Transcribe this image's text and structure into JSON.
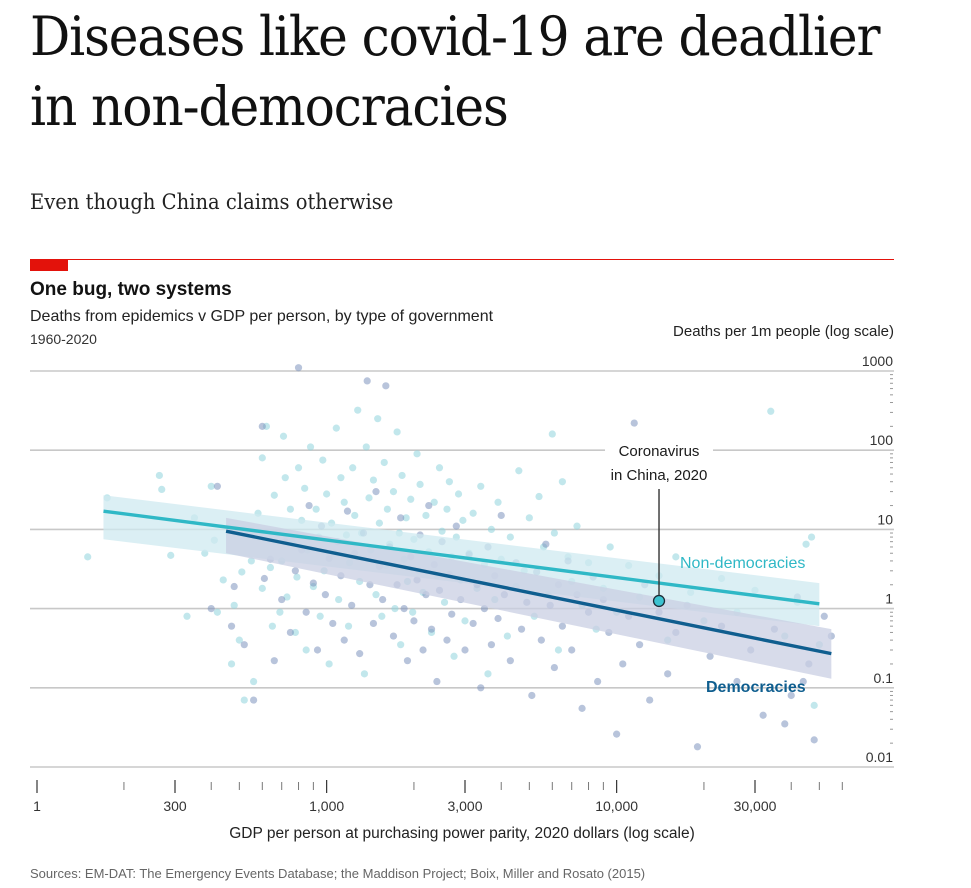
{
  "article": {
    "headline": "Diseases like covid-19 are deadlier in non-democracies",
    "standfirst": "Even though China claims otherwise"
  },
  "colors": {
    "brand_red": "#e3120b",
    "non_democracies": "#2fb8c6",
    "democracies": "#0f5e8f",
    "non_dem_points": "#8fd3dc",
    "dem_points": "#7e93bd",
    "non_dem_band": "#cfeaf0",
    "dem_band": "#c9cfe3",
    "grid": "#c8c8c8",
    "china_marker": "#3cc3d0"
  },
  "chart_data": {
    "type": "scatter",
    "title": "One bug, two systems",
    "subtitle": "Deaths from epidemics v GDP per person, by type of government",
    "period": "1960-2020",
    "xlabel": "GDP per person at purchasing power parity, 2020 dollars (log scale)",
    "ylabel": "Deaths per 1m people (log scale)",
    "x_scale": "log",
    "y_scale": "log",
    "xlim": [
      150,
      60000
    ],
    "ylim": [
      0.01,
      1000
    ],
    "x_axis_break_label": "1",
    "x_ticks": [
      {
        "value": 300,
        "label": "300"
      },
      {
        "value": 1000,
        "label": "1,000"
      },
      {
        "value": 3000,
        "label": "3,000"
      },
      {
        "value": 10000,
        "label": "10,000"
      },
      {
        "value": 30000,
        "label": "30,000"
      }
    ],
    "x_minor_ticks": [
      200,
      400,
      500,
      600,
      700,
      800,
      900,
      2000,
      4000,
      5000,
      6000,
      7000,
      8000,
      9000,
      20000,
      40000,
      50000,
      60000
    ],
    "y_ticks": [
      {
        "value": 1000,
        "label": "1000"
      },
      {
        "value": 100,
        "label": "100"
      },
      {
        "value": 10,
        "label": "10"
      },
      {
        "value": 1,
        "label": "1"
      },
      {
        "value": 0.1,
        "label": "0.1"
      },
      {
        "value": 0.01,
        "label": "0.01"
      }
    ],
    "grid": true,
    "legend": "inline-labels",
    "series": [
      {
        "name": "Non-democracies",
        "label": "Non-democracies",
        "trend": {
          "x": [
            170,
            50000
          ],
          "y": [
            17,
            1.15
          ],
          "band_low": [
            7.5,
            0.6
          ],
          "band_high": [
            27,
            2.1
          ]
        },
        "points": [
          [
            150,
            4.5
          ],
          [
            175,
            25
          ],
          [
            265,
            48
          ],
          [
            270,
            32
          ],
          [
            290,
            4.7
          ],
          [
            330,
            0.8
          ],
          [
            350,
            14
          ],
          [
            380,
            5
          ],
          [
            400,
            35
          ],
          [
            410,
            7.3
          ],
          [
            420,
            0.9
          ],
          [
            440,
            2.3
          ],
          [
            470,
            0.2
          ],
          [
            480,
            1.1
          ],
          [
            500,
            0.4
          ],
          [
            510,
            2.9
          ],
          [
            520,
            0.07
          ],
          [
            550,
            4
          ],
          [
            560,
            0.12
          ],
          [
            580,
            16
          ],
          [
            600,
            1.8
          ],
          [
            600,
            80
          ],
          [
            620,
            200
          ],
          [
            640,
            3.3
          ],
          [
            650,
            0.6
          ],
          [
            660,
            27
          ],
          [
            680,
            9
          ],
          [
            690,
            0.9
          ],
          [
            700,
            4
          ],
          [
            710,
            150
          ],
          [
            720,
            45
          ],
          [
            730,
            1.4
          ],
          [
            750,
            18
          ],
          [
            760,
            7
          ],
          [
            780,
            0.5
          ],
          [
            790,
            2.5
          ],
          [
            800,
            60
          ],
          [
            820,
            13
          ],
          [
            840,
            33
          ],
          [
            850,
            0.3
          ],
          [
            860,
            5.5
          ],
          [
            880,
            110
          ],
          [
            900,
            1.9
          ],
          [
            920,
            18
          ],
          [
            940,
            8
          ],
          [
            950,
            0.8
          ],
          [
            970,
            75
          ],
          [
            980,
            3
          ],
          [
            1000,
            28
          ],
          [
            1020,
            0.2
          ],
          [
            1040,
            12
          ],
          [
            1060,
            5
          ],
          [
            1080,
            190
          ],
          [
            1100,
            1.3
          ],
          [
            1120,
            45
          ],
          [
            1150,
            22
          ],
          [
            1170,
            8.5
          ],
          [
            1190,
            0.6
          ],
          [
            1200,
            3.8
          ],
          [
            1230,
            60
          ],
          [
            1250,
            15
          ],
          [
            1280,
            320
          ],
          [
            1300,
            2.2
          ],
          [
            1320,
            9
          ],
          [
            1350,
            0.15
          ],
          [
            1370,
            110
          ],
          [
            1400,
            25
          ],
          [
            1420,
            5.5
          ],
          [
            1450,
            42
          ],
          [
            1480,
            1.5
          ],
          [
            1500,
            250
          ],
          [
            1520,
            12
          ],
          [
            1550,
            0.8
          ],
          [
            1580,
            70
          ],
          [
            1600,
            3.5
          ],
          [
            1620,
            18
          ],
          [
            1650,
            6.5
          ],
          [
            1700,
            30
          ],
          [
            1720,
            1
          ],
          [
            1750,
            170
          ],
          [
            1780,
            9
          ],
          [
            1800,
            0.35
          ],
          [
            1820,
            48
          ],
          [
            1850,
            4.2
          ],
          [
            1880,
            14
          ],
          [
            1900,
            2.2
          ],
          [
            1950,
            24
          ],
          [
            1980,
            0.9
          ],
          [
            2000,
            7.5
          ],
          [
            2050,
            90
          ],
          [
            2080,
            3
          ],
          [
            2100,
            37
          ],
          [
            2150,
            1.6
          ],
          [
            2200,
            15
          ],
          [
            2250,
            5.2
          ],
          [
            2300,
            0.5
          ],
          [
            2350,
            22
          ],
          [
            2400,
            2.6
          ],
          [
            2450,
            60
          ],
          [
            2500,
            9.5
          ],
          [
            2550,
            1.2
          ],
          [
            2600,
            18
          ],
          [
            2650,
            40
          ],
          [
            2700,
            4.5
          ],
          [
            2750,
            0.25
          ],
          [
            2800,
            8
          ],
          [
            2850,
            28
          ],
          [
            2900,
            2.3
          ],
          [
            2950,
            13
          ],
          [
            3000,
            0.7
          ],
          [
            3100,
            5
          ],
          [
            3200,
            16
          ],
          [
            3300,
            1.8
          ],
          [
            3400,
            35
          ],
          [
            3500,
            3.6
          ],
          [
            3600,
            0.15
          ],
          [
            3700,
            10
          ],
          [
            3800,
            1.3
          ],
          [
            3900,
            22
          ],
          [
            4000,
            4.2
          ],
          [
            4200,
            0.45
          ],
          [
            4300,
            8
          ],
          [
            4500,
            1.9
          ],
          [
            4600,
            55
          ],
          [
            4800,
            3
          ],
          [
            5000,
            14
          ],
          [
            5200,
            0.8
          ],
          [
            5400,
            26
          ],
          [
            5600,
            6
          ],
          [
            5800,
            1.5
          ],
          [
            6000,
            160
          ],
          [
            6100,
            9
          ],
          [
            6300,
            0.3
          ],
          [
            6500,
            40
          ],
          [
            6800,
            4.5
          ],
          [
            7000,
            2.2
          ],
          [
            7300,
            11
          ],
          [
            7600,
            1.1
          ],
          [
            8000,
            3.8
          ],
          [
            8500,
            0.55
          ],
          [
            9000,
            1.8
          ],
          [
            9500,
            6
          ],
          [
            10000,
            0.9
          ],
          [
            11000,
            3.5
          ],
          [
            12000,
            1.4
          ],
          [
            13000,
            40
          ],
          [
            14000,
            2.6
          ],
          [
            15000,
            0.4
          ],
          [
            16000,
            4.5
          ],
          [
            18000,
            1.6
          ],
          [
            20000,
            0.7
          ],
          [
            23000,
            2.4
          ],
          [
            26000,
            0.9
          ],
          [
            30000,
            1.7
          ],
          [
            34000,
            310
          ],
          [
            38000,
            0.45
          ],
          [
            42000,
            1.2
          ],
          [
            45000,
            6.5
          ],
          [
            47000,
            8
          ],
          [
            48000,
            0.06
          ],
          [
            50000,
            0.35
          ]
        ]
      },
      {
        "name": "Democracies",
        "label": "Democracies",
        "trend": {
          "x": [
            450,
            55000
          ],
          "y": [
            9.5,
            0.27
          ],
          "band_low": [
            5,
            0.13
          ],
          "band_high": [
            14,
            0.55
          ]
        },
        "points": [
          [
            400,
            1
          ],
          [
            420,
            35
          ],
          [
            470,
            0.6
          ],
          [
            480,
            1.9
          ],
          [
            520,
            0.35
          ],
          [
            560,
            0.07
          ],
          [
            600,
            200
          ],
          [
            610,
            2.4
          ],
          [
            640,
            4.2
          ],
          [
            660,
            0.22
          ],
          [
            700,
            1.3
          ],
          [
            720,
            7
          ],
          [
            750,
            0.5
          ],
          [
            780,
            3
          ],
          [
            800,
            1100
          ],
          [
            820,
            5.5
          ],
          [
            850,
            0.9
          ],
          [
            870,
            20
          ],
          [
            900,
            2.1
          ],
          [
            930,
            0.3
          ],
          [
            960,
            11
          ],
          [
            990,
            1.5
          ],
          [
            1020,
            4.3
          ],
          [
            1050,
            0.65
          ],
          [
            1090,
            7
          ],
          [
            1120,
            2.6
          ],
          [
            1150,
            0.4
          ],
          [
            1180,
            17
          ],
          [
            1220,
            1.1
          ],
          [
            1250,
            5
          ],
          [
            1300,
            0.27
          ],
          [
            1340,
            9
          ],
          [
            1380,
            750
          ],
          [
            1410,
            2
          ],
          [
            1450,
            0.65
          ],
          [
            1480,
            30
          ],
          [
            1520,
            3.4
          ],
          [
            1560,
            1.3
          ],
          [
            1600,
            650
          ],
          [
            1650,
            6
          ],
          [
            1700,
            0.45
          ],
          [
            1750,
            2
          ],
          [
            1800,
            14
          ],
          [
            1850,
            1
          ],
          [
            1900,
            0.22
          ],
          [
            1950,
            4.5
          ],
          [
            2000,
            0.7
          ],
          [
            2050,
            2.3
          ],
          [
            2100,
            8.5
          ],
          [
            2150,
            0.3
          ],
          [
            2200,
            1.5
          ],
          [
            2250,
            20
          ],
          [
            2300,
            0.55
          ],
          [
            2350,
            3.6
          ],
          [
            2400,
            0.12
          ],
          [
            2450,
            1.7
          ],
          [
            2500,
            7
          ],
          [
            2600,
            0.4
          ],
          [
            2650,
            2.7
          ],
          [
            2700,
            0.85
          ],
          [
            2800,
            11
          ],
          [
            2900,
            1.3
          ],
          [
            3000,
            0.3
          ],
          [
            3100,
            4.8
          ],
          [
            3200,
            0.65
          ],
          [
            3300,
            2
          ],
          [
            3400,
            0.1
          ],
          [
            3500,
            1
          ],
          [
            3600,
            6
          ],
          [
            3700,
            0.35
          ],
          [
            3800,
            2.6
          ],
          [
            3900,
            0.75
          ],
          [
            4000,
            15
          ],
          [
            4100,
            1.5
          ],
          [
            4300,
            0.22
          ],
          [
            4500,
            3.8
          ],
          [
            4700,
            0.55
          ],
          [
            4900,
            1.2
          ],
          [
            5100,
            0.08
          ],
          [
            5300,
            2.9
          ],
          [
            5500,
            0.4
          ],
          [
            5700,
            6.5
          ],
          [
            5900,
            1.1
          ],
          [
            6100,
            0.18
          ],
          [
            6300,
            2
          ],
          [
            6500,
            0.6
          ],
          [
            6800,
            4
          ],
          [
            7000,
            0.3
          ],
          [
            7300,
            1.5
          ],
          [
            7600,
            0.055
          ],
          [
            8000,
            0.9
          ],
          [
            8300,
            2.5
          ],
          [
            8600,
            0.12
          ],
          [
            9000,
            1.3
          ],
          [
            9400,
            0.5
          ],
          [
            10000,
            0.026
          ],
          [
            10500,
            0.2
          ],
          [
            11000,
            0.8
          ],
          [
            11500,
            220
          ],
          [
            12000,
            0.35
          ],
          [
            12500,
            2
          ],
          [
            13000,
            0.07
          ],
          [
            14000,
            0.9
          ],
          [
            15000,
            0.15
          ],
          [
            16000,
            0.5
          ],
          [
            17500,
            1.1
          ],
          [
            19000,
            0.018
          ],
          [
            21000,
            0.25
          ],
          [
            23000,
            0.6
          ],
          [
            26000,
            0.12
          ],
          [
            29000,
            0.3
          ],
          [
            32000,
            0.045
          ],
          [
            35000,
            0.55
          ],
          [
            38000,
            0.035
          ],
          [
            40000,
            0.08
          ],
          [
            42000,
            1.4
          ],
          [
            44000,
            0.12
          ],
          [
            46000,
            0.2
          ],
          [
            48000,
            0.022
          ],
          [
            52000,
            0.8
          ],
          [
            55000,
            0.45
          ]
        ]
      }
    ],
    "annotations": [
      {
        "text_line1": "Coronavirus",
        "text_line2": "in China, 2020",
        "x": 14000,
        "y": 1.25
      }
    ]
  },
  "sources": "Sources: EM-DAT: The Emergency Events Database; the Maddison Project; Boix, Miller and Rosato (2015)"
}
